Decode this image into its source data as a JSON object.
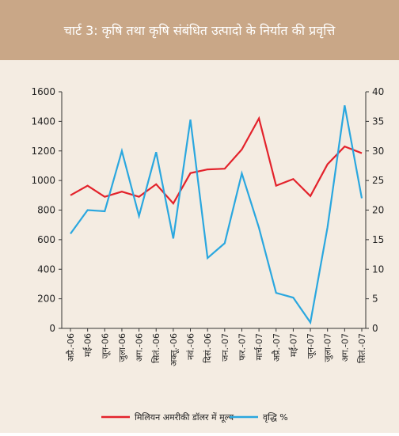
{
  "chart_data": {
    "type": "line",
    "title": "चार्ट 3: कृषि तथा कृषि संबंधित उत्पादो के निर्यात की प्रवृत्ति",
    "categories": [
      "अप्रै.-06",
      "मई-06",
      "जून-06",
      "जुला-06",
      "अग.-06",
      "सितं.-06",
      "अक्तू.-06",
      "नवं.-06",
      "दिसं.-06",
      "जन.-07",
      "फर.-07",
      "मार्च-07",
      "अप्रै.-07",
      "मई-07",
      "जून-07",
      "जुला-07",
      "अग.-07",
      "सितं.-07"
    ],
    "series": [
      {
        "name": "मिलियन अमरीकी डॉलर में मूल्य",
        "color": "#e3222b",
        "values": [
          900,
          965,
          890,
          925,
          890,
          975,
          845,
          1050,
          1075,
          1080,
          1210,
          1420,
          965,
          1010,
          895,
          1110,
          1230,
          1185
        ]
      },
      {
        "name": "वृद्धि %",
        "color": "#2aa7df",
        "axis": "y2",
        "values": [
          16,
          20,
          19.8,
          30,
          19,
          29.8,
          15.2,
          35.3,
          11.9,
          14.4,
          26.2,
          17,
          6,
          5.2,
          1,
          17.1,
          37.7,
          22
        ]
      }
    ],
    "ylim": [
      0,
      1600
    ],
    "yticks": [
      0,
      200,
      400,
      600,
      800,
      1000,
      1200,
      1400,
      1600
    ],
    "y2lim": [
      0,
      40
    ],
    "y2ticks": [
      0,
      5,
      10,
      15,
      20,
      25,
      30,
      35,
      40
    ],
    "legend": "bottom"
  }
}
